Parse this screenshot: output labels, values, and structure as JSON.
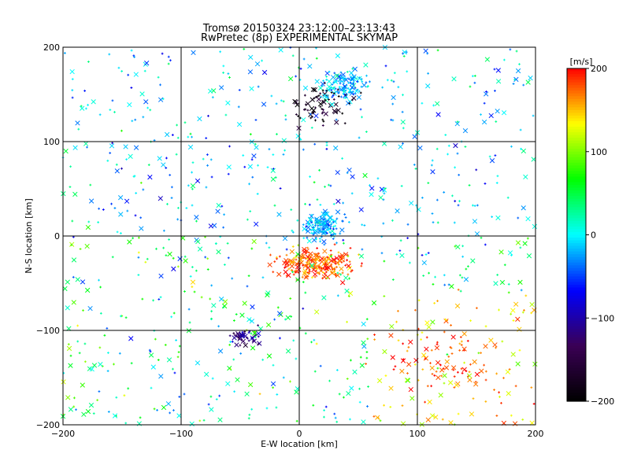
{
  "chart_data": {
    "type": "scatter",
    "title": "Tromsø 20150324 23:12:00–23:13:43",
    "subtitle": "RwPretec (8p) EXPERIMENTAL SKYMAP",
    "xlabel": "E-W location [km]",
    "ylabel": "N-S location [km]",
    "xlim": [
      -200,
      200
    ],
    "ylim": [
      -200,
      200
    ],
    "x_ticks": [
      -200,
      -100,
      0,
      100,
      200
    ],
    "y_ticks": [
      -200,
      -100,
      0,
      100,
      200
    ],
    "grid": true,
    "markers": [
      "x",
      "+"
    ],
    "colorbar": {
      "label": "[m/s]",
      "min": -200,
      "max": 200,
      "ticks": [
        200,
        100,
        0,
        -100,
        -200
      ],
      "colormap": "rainbow (black-purple-blue-cyan-green-yellow-red)",
      "colors": [
        "#000000",
        "#3a0055",
        "#0000ff",
        "#00ffff",
        "#00ff00",
        "#ffff00",
        "#ff0000"
      ]
    },
    "clusters": [
      {
        "x": 40,
        "y": 160,
        "value": -20,
        "description": "dense cyan/green cluster"
      },
      {
        "x": 20,
        "y": 10,
        "value": -25,
        "description": "dense cyan cluster"
      },
      {
        "x": 15,
        "y": -30,
        "value": 180,
        "description": "dense red cluster"
      },
      {
        "x": -45,
        "y": -105,
        "value": -120,
        "description": "blue cluster"
      },
      {
        "x": 20,
        "y": 140,
        "value": -180,
        "description": "dark purple/black points"
      },
      {
        "x": 120,
        "y": -130,
        "value": 180,
        "description": "scattered red points"
      }
    ]
  }
}
